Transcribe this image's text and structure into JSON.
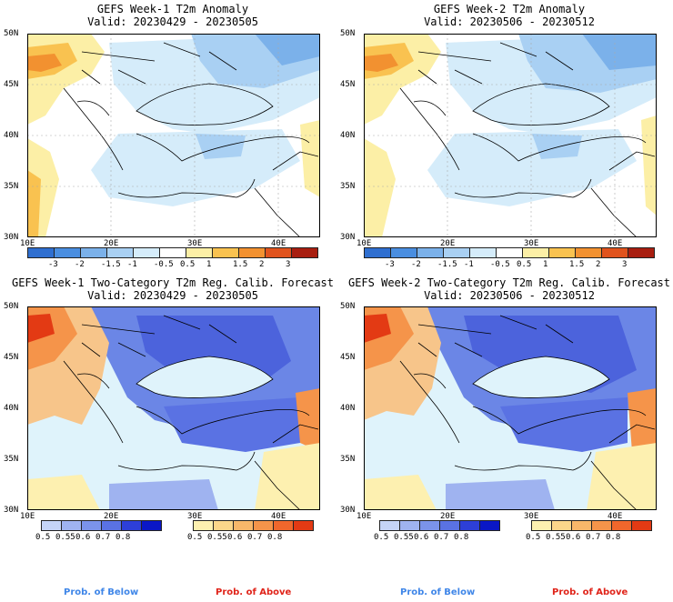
{
  "panels": [
    {
      "title_line1": "GEFS Week-1 T2m Anomaly",
      "title_line2": "Valid: 20230429 - 20230505"
    },
    {
      "title_line1": "GEFS Week-2 T2m Anomaly",
      "title_line2": "Valid: 20230506 - 20230512"
    },
    {
      "title_line1": "GEFS Week-1 Two-Category T2m Reg. Calib. Forecast",
      "title_line2": "Valid: 20230429 - 20230505"
    },
    {
      "title_line1": "GEFS Week-2 Two-Category T2m Reg. Calib. Forecast",
      "title_line2": "Valid: 20230506 - 20230512"
    }
  ],
  "axes": {
    "lat_labels": [
      "50N",
      "45N",
      "40N",
      "35N",
      "30N"
    ],
    "lon_labels": [
      "10E",
      "20E",
      "30E",
      "40E"
    ]
  },
  "anomaly_colorbar": {
    "labels": [
      "-3",
      "-2",
      "-1.5",
      "-1",
      "-0.5",
      "0.5",
      "1",
      "1.5",
      "2",
      "3"
    ],
    "colors": [
      "#2f6fd0",
      "#4a8ee0",
      "#7bb1ea",
      "#a9d0f3",
      "#d5ecfa",
      "#ffffff",
      "#fcefa6",
      "#f9c250",
      "#f29130",
      "#e0531d",
      "#a81e10"
    ]
  },
  "prob_colorbars": {
    "below_labels": [
      "0.5",
      "0.55",
      "0.6",
      "0.7",
      "0.8"
    ],
    "above_labels": [
      "0.5",
      "0.55",
      "0.6",
      "0.7",
      "0.8"
    ],
    "below_colors": [
      "#c5d4f7",
      "#9fb3f0",
      "#7b93ea",
      "#5a72e3",
      "#2d3fd8",
      "#0a17c6"
    ],
    "above_colors": [
      "#fdf0b0",
      "#fbd68a",
      "#f8b76a",
      "#f5944a",
      "#f0672c",
      "#e33a14"
    ]
  },
  "legend": {
    "below": "Prob. of Below",
    "above": "Prob. of Above",
    "below_color": "#3f86e8",
    "above_color": "#e0241a"
  },
  "colors": {
    "sea_light": "#dff3fb",
    "land_blue": "#6b86e6",
    "land_dark_blue": "#4c63dc",
    "warm": "#f7c58a"
  }
}
